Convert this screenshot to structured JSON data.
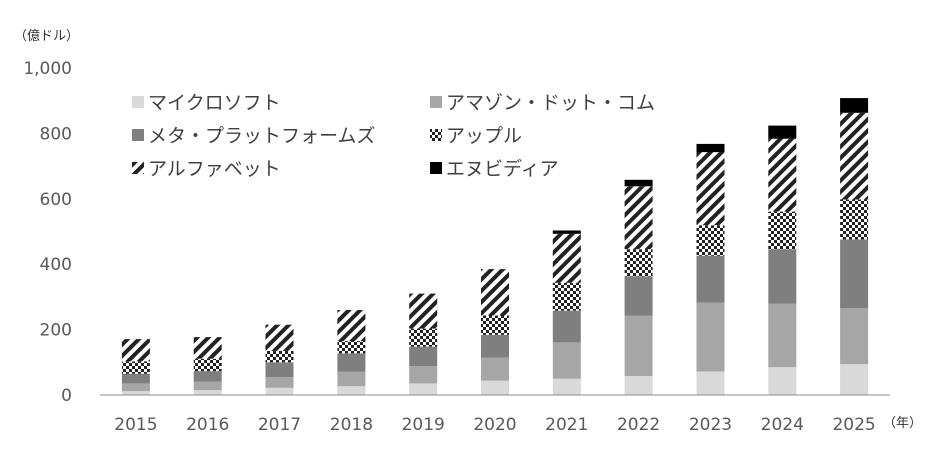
{
  "chart_data": {
    "type": "bar",
    "stacked": true,
    "y_unit_label": "（億ドル）",
    "x_unit_label": "（年）",
    "ylim": [
      0,
      1000
    ],
    "yticks": [
      "0",
      "200",
      "400",
      "600",
      "800",
      "1,000"
    ],
    "categories": [
      "2015",
      "2016",
      "2017",
      "2018",
      "2019",
      "2020",
      "2021",
      "2022",
      "2023",
      "2024",
      "2025"
    ],
    "legend_position": "top-left",
    "series": [
      {
        "name": "マイクロソフト",
        "color": "#d9d9d9",
        "pattern": "solid",
        "values": [
          12,
          15,
          22,
          27,
          35,
          44,
          50,
          58,
          72,
          85,
          94
        ]
      },
      {
        "name": "アマゾン・ドット・コム",
        "color": "#a6a6a6",
        "pattern": "solid",
        "values": [
          23,
          26,
          33,
          45,
          53,
          70,
          110,
          185,
          210,
          195,
          172
        ]
      },
      {
        "name": "メタ・プラットフォームズ",
        "color": "#7f7f7f",
        "pattern": "solid",
        "values": [
          30,
          32,
          45,
          55,
          60,
          70,
          98,
          120,
          144,
          166,
          210
        ]
      },
      {
        "name": "アップル",
        "color": "#222222",
        "pattern": "checker",
        "values": [
          38,
          38,
          35,
          38,
          55,
          59,
          85,
          83,
          93,
          115,
          122
        ]
      },
      {
        "name": "アルファベット",
        "color": "#222222",
        "pattern": "diagonal",
        "values": [
          68,
          66,
          80,
          95,
          107,
          142,
          150,
          192,
          224,
          223,
          265
        ]
      },
      {
        "name": "エヌビディア",
        "color": "#000000",
        "pattern": "solid",
        "values": [
          0,
          0,
          0,
          0,
          0,
          0,
          10,
          20,
          25,
          40,
          45
        ]
      }
    ]
  }
}
